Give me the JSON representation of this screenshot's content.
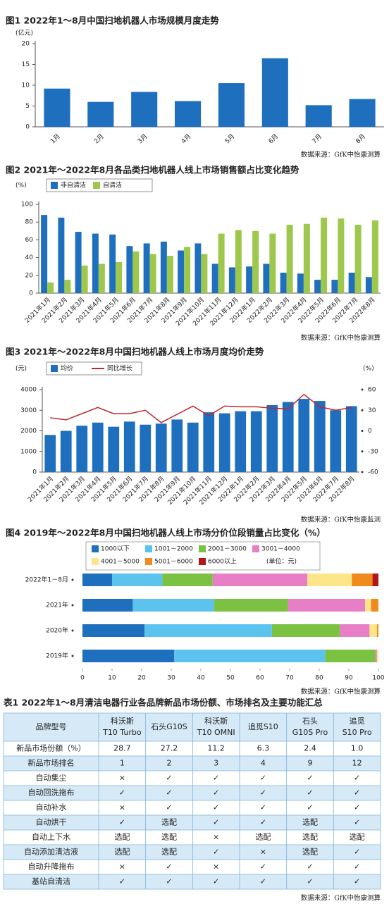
{
  "chart_data": [
    {
      "type": "bar",
      "title": "图1  2022年1～8月中国扫地机器人市场规模月度走势",
      "y_label": "(亿元)",
      "categories": [
        "1月",
        "2月",
        "3月",
        "4月",
        "5月",
        "6月",
        "7月",
        "8月"
      ],
      "values": [
        9.2,
        6.0,
        8.4,
        6.2,
        10.5,
        16.5,
        5.2,
        6.7
      ],
      "color": "#1f6fbf",
      "ylim": [
        0,
        20
      ],
      "yticks": [
        0,
        5,
        10,
        15,
        20
      ],
      "grid": false,
      "source": "数据来源：GfK中怡康测算"
    },
    {
      "type": "bar",
      "title": "图2  2021年～2022年8月各品类扫地机器人线上市场销售额占比变化趋势",
      "y_label": "(%)",
      "categories": [
        "2021年1月",
        "2021年2月",
        "2021年3月",
        "2021年4月",
        "2021年5月",
        "2021年6月",
        "2021年7月",
        "2021年8月",
        "2021年9月",
        "2021年10月",
        "2021年11月",
        "2021年12月",
        "2022年1月",
        "2022年2月",
        "2022年3月",
        "2022年4月",
        "2022年5月",
        "2022年6月",
        "2022年7月",
        "2022年8月"
      ],
      "series": [
        {
          "name": "非自清洁",
          "color": "#1f6fbf",
          "values": [
            88,
            85,
            69,
            67,
            66,
            53,
            56,
            58,
            48,
            56,
            33,
            29,
            30,
            33,
            23,
            22,
            15,
            15,
            23,
            18
          ]
        },
        {
          "name": "自清洁",
          "color": "#9dc84b",
          "values": [
            12,
            15,
            31,
            33,
            35,
            47,
            44,
            42,
            52,
            44,
            67,
            71,
            70,
            67,
            77,
            78,
            85,
            84,
            77,
            82
          ]
        }
      ],
      "ylim": [
        0,
        100
      ],
      "yticks": [
        0,
        20,
        40,
        60,
        80,
        100
      ],
      "grid": false,
      "source": "数据来源：GfK中怡康测算"
    },
    {
      "type": "bar",
      "title": "图3  2021年～2022年8月中国扫地机器人线上市场月度均价走势",
      "y_label": "(元)",
      "y2_label": "(%)",
      "categories": [
        "2021年1月",
        "2021年2月",
        "2021年3月",
        "2021年4月",
        "2021年5月",
        "2021年6月",
        "2021年7月",
        "2021年8月",
        "2021年9月",
        "2021年10月",
        "2021年11月",
        "2021年12月",
        "2022年1月",
        "2022年2月",
        "2022年3月",
        "2022年4月",
        "2022年5月",
        "2022年6月",
        "2022年7月",
        "2022年8月"
      ],
      "series": [
        {
          "name": "均价",
          "color": "#1f6fbf",
          "values": [
            1800,
            2000,
            2250,
            2400,
            2200,
            2450,
            2300,
            2350,
            2550,
            2400,
            2900,
            2850,
            2950,
            2950,
            3250,
            3400,
            3550,
            3450,
            3000,
            3200
          ]
        },
        {
          "name": "同比增长",
          "color": "#c0272d",
          "type": "line",
          "axis": "y2",
          "values": [
            19,
            16,
            25,
            34,
            25,
            25,
            30,
            12,
            24,
            36,
            22,
            36,
            35,
            35,
            33,
            32,
            53,
            35,
            30,
            34
          ]
        }
      ],
      "ylim": [
        0,
        4000
      ],
      "yticks": [
        0,
        1000,
        2000,
        3000,
        4000
      ],
      "y2lim": [
        -60,
        60
      ],
      "y2ticks": [
        -60,
        -30,
        0,
        30,
        60
      ],
      "grid": false,
      "source": "数据来源：GfK中怡康监测"
    },
    {
      "type": "barh_stacked",
      "title": "图4  2019年～2022年8月中国扫地机器人线上市场分价位段销量占比变化（%）",
      "legend_note": "(单位：元)",
      "categories": [
        "2022年1－8月",
        "2021年",
        "2020年",
        "2019年"
      ],
      "series": [
        {
          "name": "1000以下",
          "color": "#1f6fbf",
          "values": [
            10,
            17,
            21,
            31
          ]
        },
        {
          "name": "1001－2000",
          "color": "#5bc3ee",
          "values": [
            17,
            27.5,
            43,
            51
          ]
        },
        {
          "name": "2001－3000",
          "color": "#7cc242",
          "values": [
            17,
            25,
            23,
            17
          ]
        },
        {
          "name": "3001－4000",
          "color": "#e87fc6",
          "values": [
            32,
            26,
            10,
            0.5
          ]
        },
        {
          "name": "4001－5000",
          "color": "#fde58a",
          "values": [
            15,
            2,
            2.5,
            0.5
          ]
        },
        {
          "name": "5001－6000",
          "color": "#f08a1d",
          "values": [
            7,
            2.5,
            0.5,
            0
          ]
        },
        {
          "name": "6000以上",
          "color": "#b0161b",
          "values": [
            2,
            0,
            0,
            0
          ]
        }
      ],
      "xlim": [
        0,
        100
      ],
      "xticks": [
        0,
        10,
        20,
        30,
        40,
        50,
        60,
        70,
        80,
        90,
        100
      ],
      "grid": false,
      "source": "数据来源：GfK中怡康测算"
    }
  ],
  "table": {
    "title": "表1  2022年1～8月清洁电器行业各品牌新品市场份额、市场排名及主要功能汇总",
    "header": [
      [
        "品牌型号"
      ],
      [
        "科沃斯",
        "T10 Turbo"
      ],
      [
        "石头G10S"
      ],
      [
        "科沃斯",
        "T10 OMNI"
      ],
      [
        "追觅S10"
      ],
      [
        "石头",
        "G10S Pro"
      ],
      [
        "追觅",
        "S10 Pro"
      ]
    ],
    "rows": [
      [
        "新品市场份额（%）",
        "28.7",
        "27.2",
        "11.2",
        "6.3",
        "2.4",
        "1.0"
      ],
      [
        "新品市场排名",
        "1",
        "2",
        "3",
        "4",
        "9",
        "12"
      ],
      [
        "自动集尘",
        "×",
        "✓",
        "✓",
        "✓",
        "✓",
        "✓"
      ],
      [
        "自动回洗拖布",
        "✓",
        "✓",
        "✓",
        "✓",
        "✓",
        "✓"
      ],
      [
        "自动补水",
        "×",
        "✓",
        "✓",
        "✓",
        "✓",
        "✓"
      ],
      [
        "自动烘干",
        "✓",
        "选配",
        "✓",
        "✓",
        "选配",
        "✓"
      ],
      [
        "自动上下水",
        "选配",
        "选配",
        "×",
        "选配",
        "选配",
        "选配"
      ],
      [
        "自动添加清洁液",
        "选配",
        "选配",
        "✓",
        "×",
        "选配",
        "✓"
      ],
      [
        "自动升降拖布",
        "×",
        "✓",
        "×",
        "✓",
        "✓",
        "✓"
      ],
      [
        "基站自清洁",
        "✓",
        "✓",
        "✓",
        "✓",
        "✓",
        "✓"
      ]
    ],
    "source": "数据来源：GfK中怡康测算"
  }
}
